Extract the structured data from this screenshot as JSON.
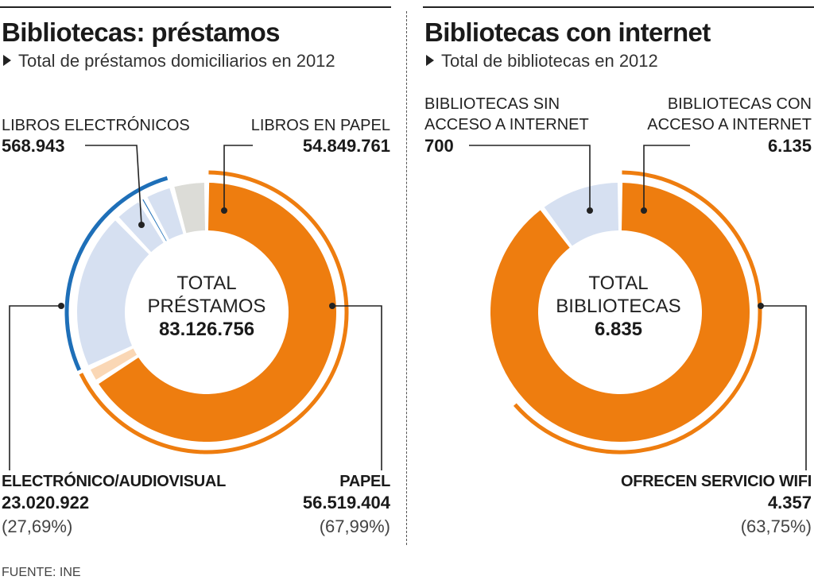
{
  "source": "FUENTE: INE",
  "chart_data": [
    {
      "type": "pie",
      "title": "Bibliotecas: préstamos",
      "subtitle": "Total de préstamos domiciliarios en 2012",
      "center": {
        "label": "TOTAL PRÉSTAMOS",
        "value": "83.126.756"
      },
      "labels": {
        "ebooks": {
          "name": "LIBROS ELECTRÓNICOS",
          "value": "568.943"
        },
        "paper_books": {
          "name": "LIBROS EN PAPEL",
          "value": "54.849.761"
        },
        "electronic": {
          "name": "ELECTRÓNICO/AUDIOVISUAL",
          "value": "23.020.922",
          "pct": "(27,69%)"
        },
        "paper": {
          "name": "PAPEL",
          "value": "56.519.404",
          "pct": "(67,99%)"
        }
      },
      "slices": [
        {
          "group": "paper",
          "value": 54849761,
          "color": "#ee7d0f"
        },
        {
          "group": "paper",
          "value": 1669643,
          "color": "#fad7b5"
        },
        {
          "group": "electronic",
          "value": 16500000,
          "color": "#d6e0f1"
        },
        {
          "group": "electronic",
          "value": 3000000,
          "color": "#d6e0f1"
        },
        {
          "group": "electronic",
          "value": 568943,
          "color": "#1e6fb8"
        },
        {
          "group": "electronic",
          "value": 2951979,
          "color": "#d6e0f1"
        },
        {
          "group": "other",
          "value": 3586430,
          "color": "#dcdcd7"
        }
      ],
      "outer_arcs": [
        {
          "group": "paper",
          "value": 56519404,
          "color": "#ee7d0f"
        },
        {
          "group": "electronic",
          "value": 23020922,
          "color": "#1e6fb8"
        }
      ]
    },
    {
      "type": "pie",
      "title": "Bibliotecas con internet",
      "subtitle": "Total de bibliotecas en 2012",
      "center": {
        "label": "TOTAL BIBLIOTECAS",
        "value": "6.835"
      },
      "labels": {
        "without": {
          "name": "BIBLIOTECAS SIN ACCESO A INTERNET",
          "line1": "BIBLIOTECAS SIN",
          "line2": "ACCESO A INTERNET",
          "value": "700"
        },
        "with": {
          "name": "BIBLIOTECAS CON ACCESO A INTERNET",
          "line1": "BIBLIOTECAS CON",
          "line2": "ACCESO A INTERNET",
          "value": "6.135"
        },
        "wifi": {
          "name": "OFRECEN SERVICIO WIFI",
          "value": "4.357",
          "pct": "(63,75%)"
        }
      },
      "slices": [
        {
          "group": "with",
          "value": 6135,
          "color": "#ee7d0f"
        },
        {
          "group": "without",
          "value": 700,
          "color": "#d6e0f1"
        }
      ],
      "outer_arcs": [
        {
          "group": "wifi",
          "value": 4357,
          "color": "#ee7d0f"
        }
      ]
    }
  ]
}
